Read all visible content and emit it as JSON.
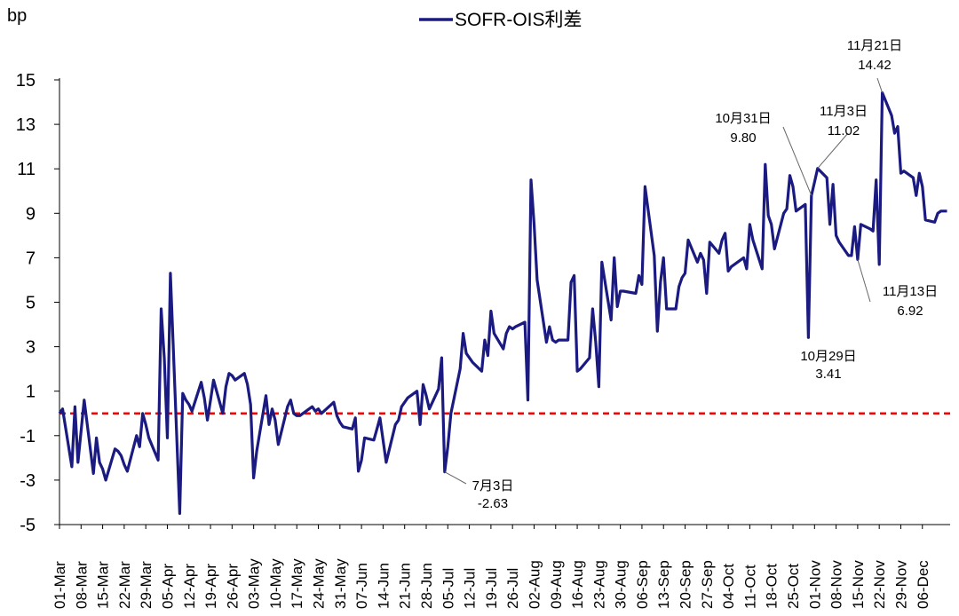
{
  "chart_data": {
    "type": "line",
    "ylabel": "bp",
    "ylim": [
      -5,
      15
    ],
    "yticks": [
      15,
      13,
      11,
      9,
      7,
      5,
      3,
      1,
      -1,
      -3,
      -5
    ],
    "x_tick_labels": [
      "01-Mar",
      "08-Mar",
      "15-Mar",
      "22-Mar",
      "29-Mar",
      "05-Apr",
      "12-Apr",
      "19-Apr",
      "26-Apr",
      "03-May",
      "10-May",
      "17-May",
      "24-May",
      "31-May",
      "07-Jun",
      "14-Jun",
      "21-Jun",
      "28-Jun",
      "05-Jul",
      "12-Jul",
      "19-Jul",
      "26-Jul",
      "02-Aug",
      "09-Aug",
      "16-Aug",
      "23-Aug",
      "30-Aug",
      "06-Sep",
      "13-Sep",
      "20-Sep",
      "27-Sep",
      "04-Oct",
      "11-Oct",
      "18-Oct",
      "25-Oct",
      "01-Nov",
      "08-Nov",
      "15-Nov",
      "22-Nov",
      "29-Nov",
      "06-Dec"
    ],
    "series": [
      {
        "name": "SOFR-OIS利差",
        "color": "#1a1a80",
        "points": [
          [
            "01-Mar",
            0
          ],
          [
            "02-Mar",
            0.2
          ],
          [
            "05-Mar",
            -2.4
          ],
          [
            "06-Mar",
            0.3
          ],
          [
            "07-Mar",
            -2.2
          ],
          [
            "08-Mar",
            -0.8
          ],
          [
            "09-Mar",
            0.6
          ],
          [
            "12-Mar",
            -2.7
          ],
          [
            "13-Mar",
            -1.1
          ],
          [
            "14-Mar",
            -2.2
          ],
          [
            "15-Mar",
            -2.5
          ],
          [
            "16-Mar",
            -3.0
          ],
          [
            "19-Mar",
            -1.6
          ],
          [
            "20-Mar",
            -1.7
          ],
          [
            "21-Mar",
            -1.9
          ],
          [
            "22-Mar",
            -2.3
          ],
          [
            "23-Mar",
            -2.6
          ],
          [
            "26-Mar",
            -1.0
          ],
          [
            "27-Mar",
            -1.5
          ],
          [
            "28-Mar",
            0.0
          ],
          [
            "29-Mar",
            -0.5
          ],
          [
            "30-Mar",
            -1.1
          ],
          [
            "02-Apr",
            -2.1
          ],
          [
            "03-Apr",
            4.7
          ],
          [
            "04-Apr",
            2.5
          ],
          [
            "05-Apr",
            -1.1
          ],
          [
            "06-Apr",
            6.3
          ],
          [
            "09-Apr",
            -4.5
          ],
          [
            "10-Apr",
            0.9
          ],
          [
            "11-Apr",
            0.6
          ],
          [
            "12-Apr",
            0.4
          ],
          [
            "13-Apr",
            0.1
          ],
          [
            "16-Apr",
            1.4
          ],
          [
            "17-Apr",
            0.7
          ],
          [
            "18-Apr",
            -0.3
          ],
          [
            "19-Apr",
            0.6
          ],
          [
            "20-Apr",
            1.5
          ],
          [
            "23-Apr",
            0.0
          ],
          [
            "24-Apr",
            1.2
          ],
          [
            "25-Apr",
            1.8
          ],
          [
            "26-Apr",
            1.7
          ],
          [
            "27-Apr",
            1.5
          ],
          [
            "30-Apr",
            1.8
          ],
          [
            "01-May",
            1.3
          ],
          [
            "02-May",
            0.4
          ],
          [
            "03-May",
            -2.9
          ],
          [
            "04-May",
            -1.7
          ],
          [
            "07-May",
            0.8
          ],
          [
            "08-May",
            -0.5
          ],
          [
            "09-May",
            0.2
          ],
          [
            "10-May",
            -0.3
          ],
          [
            "11-May",
            -1.4
          ],
          [
            "14-May",
            0.3
          ],
          [
            "15-May",
            0.6
          ],
          [
            "16-May",
            0.0
          ],
          [
            "17-May",
            -0.1
          ],
          [
            "18-May",
            -0.1
          ],
          [
            "21-May",
            0.2
          ],
          [
            "22-May",
            0.3
          ],
          [
            "23-May",
            0.1
          ],
          [
            "24-May",
            0.2
          ],
          [
            "25-May",
            0.0
          ],
          [
            "29-May",
            0.5
          ],
          [
            "30-May",
            -0.1
          ],
          [
            "31-May",
            -0.4
          ],
          [
            "01-Jun",
            -0.6
          ],
          [
            "04-Jun",
            -0.7
          ],
          [
            "05-Jun",
            -0.2
          ],
          [
            "06-Jun",
            -2.6
          ],
          [
            "07-Jun",
            -2.1
          ],
          [
            "08-Jun",
            -1.1
          ],
          [
            "11-Jun",
            -1.2
          ],
          [
            "12-Jun",
            -0.7
          ],
          [
            "13-Jun",
            -0.2
          ],
          [
            "14-Jun",
            -1.2
          ],
          [
            "15-Jun",
            -2.2
          ],
          [
            "18-Jun",
            -0.5
          ],
          [
            "19-Jun",
            -0.3
          ],
          [
            "20-Jun",
            0.3
          ],
          [
            "21-Jun",
            0.5
          ],
          [
            "22-Jun",
            0.7
          ],
          [
            "25-Jun",
            1.0
          ],
          [
            "26-Jun",
            -0.5
          ],
          [
            "27-Jun",
            1.3
          ],
          [
            "28-Jun",
            0.8
          ],
          [
            "29-Jun",
            0.2
          ],
          [
            "02-Jul",
            1.1
          ],
          [
            "03-Jul",
            2.5
          ],
          [
            "04-Jul",
            -2.63
          ],
          [
            "05-Jul",
            -1.5
          ],
          [
            "06-Jul",
            0.0
          ],
          [
            "09-Jul",
            2.0
          ],
          [
            "10-Jul",
            3.6
          ],
          [
            "11-Jul",
            2.7
          ],
          [
            "12-Jul",
            2.5
          ],
          [
            "13-Jul",
            2.3
          ],
          [
            "16-Jul",
            1.9
          ],
          [
            "17-Jul",
            3.3
          ],
          [
            "18-Jul",
            2.6
          ],
          [
            "19-Jul",
            4.6
          ],
          [
            "20-Jul",
            3.6
          ],
          [
            "23-Jul",
            2.9
          ],
          [
            "24-Jul",
            3.6
          ],
          [
            "25-Jul",
            3.9
          ],
          [
            "26-Jul",
            3.8
          ],
          [
            "27-Jul",
            3.9
          ],
          [
            "30-Jul",
            4.1
          ],
          [
            "31-Jul",
            0.6
          ],
          [
            "01-Aug",
            10.5
          ],
          [
            "02-Aug",
            8.5
          ],
          [
            "03-Aug",
            6.0
          ],
          [
            "06-Aug",
            3.2
          ],
          [
            "07-Aug",
            3.9
          ],
          [
            "08-Aug",
            3.3
          ],
          [
            "09-Aug",
            3.2
          ],
          [
            "10-Aug",
            3.3
          ],
          [
            "13-Aug",
            3.3
          ],
          [
            "14-Aug",
            5.9
          ],
          [
            "15-Aug",
            6.2
          ],
          [
            "16-Aug",
            1.9
          ],
          [
            "17-Aug",
            2.0
          ],
          [
            "20-Aug",
            2.5
          ],
          [
            "21-Aug",
            4.7
          ],
          [
            "22-Aug",
            3.2
          ],
          [
            "23-Aug",
            1.2
          ],
          [
            "24-Aug",
            6.8
          ],
          [
            "27-Aug",
            4.2
          ],
          [
            "28-Aug",
            7.0
          ],
          [
            "29-Aug",
            4.8
          ],
          [
            "30-Aug",
            5.5
          ],
          [
            "31-Aug",
            5.5
          ],
          [
            "04-Sep",
            5.4
          ],
          [
            "05-Sep",
            6.2
          ],
          [
            "06-Sep",
            5.8
          ],
          [
            "07-Sep",
            10.2
          ],
          [
            "10-Sep",
            7.1
          ],
          [
            "11-Sep",
            3.7
          ],
          [
            "12-Sep",
            5.9
          ],
          [
            "13-Sep",
            7.0
          ],
          [
            "14-Sep",
            4.7
          ],
          [
            "17-Sep",
            4.7
          ],
          [
            "18-Sep",
            5.7
          ],
          [
            "19-Sep",
            6.1
          ],
          [
            "20-Sep",
            6.3
          ],
          [
            "21-Sep",
            7.8
          ],
          [
            "24-Sep",
            6.8
          ],
          [
            "25-Sep",
            7.2
          ],
          [
            "26-Sep",
            6.9
          ],
          [
            "27-Sep",
            5.4
          ],
          [
            "28-Sep",
            7.7
          ],
          [
            "01-Oct",
            7.2
          ],
          [
            "02-Oct",
            7.8
          ],
          [
            "03-Oct",
            8.1
          ],
          [
            "04-Oct",
            6.4
          ],
          [
            "05-Oct",
            6.6
          ],
          [
            "09-Oct",
            7.0
          ],
          [
            "10-Oct",
            6.5
          ],
          [
            "11-Oct",
            8.5
          ],
          [
            "12-Oct",
            7.8
          ],
          [
            "15-Oct",
            6.5
          ],
          [
            "16-Oct",
            11.2
          ],
          [
            "17-Oct",
            8.9
          ],
          [
            "18-Oct",
            8.5
          ],
          [
            "19-Oct",
            7.4
          ],
          [
            "22-Oct",
            9.0
          ],
          [
            "23-Oct",
            9.2
          ],
          [
            "24-Oct",
            10.7
          ],
          [
            "25-Oct",
            10.2
          ],
          [
            "26-Oct",
            9.1
          ],
          [
            "29-Oct",
            9.4
          ],
          [
            "30-Oct",
            3.41
          ],
          [
            "31-Oct",
            9.8
          ],
          [
            "01-Nov",
            10.4
          ],
          [
            "02-Nov",
            11.02
          ],
          [
            "05-Nov",
            10.6
          ],
          [
            "06-Nov",
            8.5
          ],
          [
            "07-Nov",
            10.3
          ],
          [
            "08-Nov",
            8.0
          ],
          [
            "09-Nov",
            7.7
          ],
          [
            "12-Nov",
            7.1
          ],
          [
            "13-Nov",
            7.1
          ],
          [
            "14-Nov",
            8.4
          ],
          [
            "15-Nov",
            6.92
          ],
          [
            "16-Nov",
            8.5
          ],
          [
            "19-Nov",
            8.3
          ],
          [
            "20-Nov",
            8.2
          ],
          [
            "21-Nov",
            10.5
          ],
          [
            "22-Nov",
            6.7
          ],
          [
            "23-Nov",
            14.42
          ],
          [
            "26-Nov",
            13.4
          ],
          [
            "27-Nov",
            12.6
          ],
          [
            "28-Nov",
            12.9
          ],
          [
            "29-Nov",
            10.8
          ],
          [
            "30-Nov",
            10.9
          ],
          [
            "03-Dec",
            10.6
          ],
          [
            "04-Dec",
            9.8
          ],
          [
            "05-Dec",
            10.8
          ],
          [
            "06-Dec",
            10.2
          ],
          [
            "07-Dec",
            8.7
          ],
          [
            "10-Dec",
            8.6
          ],
          [
            "11-Dec",
            9.0
          ],
          [
            "12-Dec",
            9.1
          ],
          [
            "13-Dec",
            9.1
          ],
          [
            "14-Dec",
            9.1
          ]
        ]
      }
    ],
    "reference_line": {
      "y": 0,
      "color": "#ff0000",
      "style": "dashed"
    },
    "annotations": [
      {
        "date": "04-Jul",
        "label": "7月3日",
        "value": "-2.63"
      },
      {
        "date": "30-Oct",
        "label": "10月29日",
        "value": "3.41"
      },
      {
        "date": "31-Oct",
        "label": "10月31日",
        "value": "9.80"
      },
      {
        "date": "02-Nov",
        "label": "11月3日",
        "value": "11.02"
      },
      {
        "date": "15-Nov",
        "label": "11月13日",
        "value": "6.92"
      },
      {
        "date": "23-Nov",
        "label": "11月21日",
        "value": "14.42"
      }
    ],
    "legend": {
      "position": "top-center"
    },
    "grid": false
  }
}
